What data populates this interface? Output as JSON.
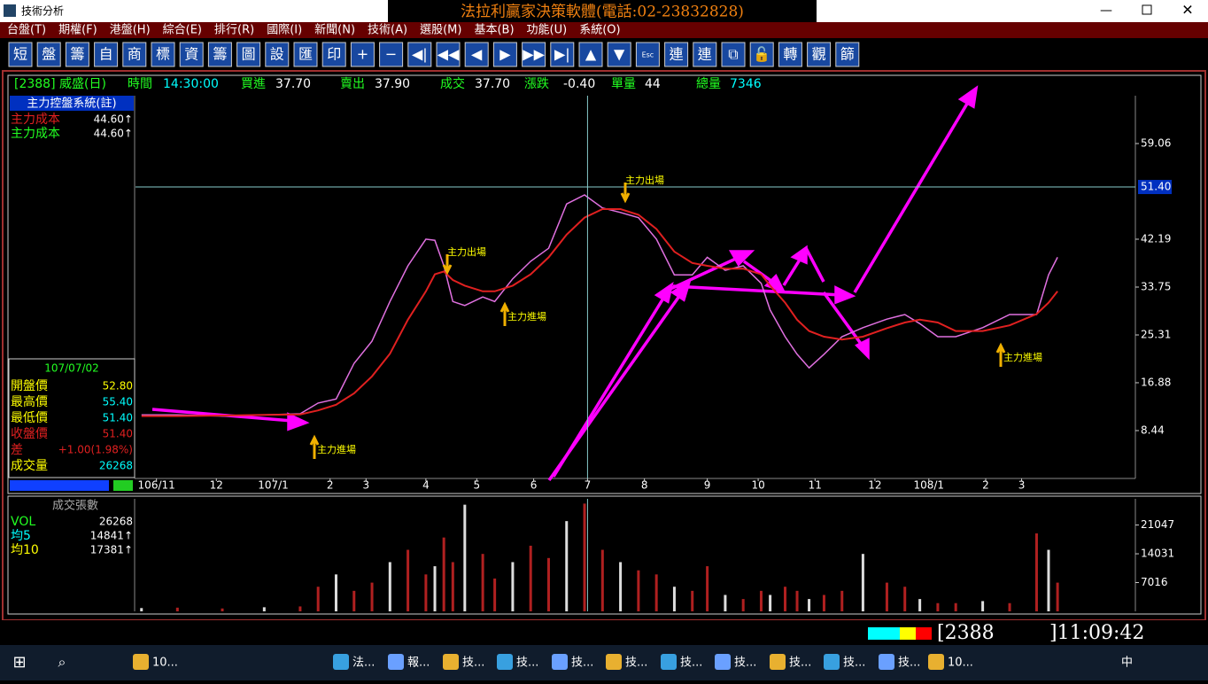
{
  "window": {
    "title": "技術分析",
    "banner": "法拉利贏家決策軟體(電話:02-23832828)"
  },
  "menu": [
    "台盤(T)",
    "期權(F)",
    "港盤(H)",
    "綜合(E)",
    "排行(R)",
    "國際(I)",
    "新聞(N)",
    "技術(A)",
    "選股(M)",
    "基本(B)",
    "功能(U)",
    "系統(O)"
  ],
  "toolbar": [
    "短",
    "盤",
    "籌",
    "自",
    "商",
    "標",
    "資",
    "籌",
    "圖",
    "設",
    "匯",
    "印",
    "+",
    "−",
    "◀|",
    "◀◀",
    "◀",
    "▶",
    "▶▶",
    "▶|",
    "▲",
    "▼",
    "Esc",
    "連",
    "連",
    "⧉",
    "🔓",
    "轉",
    "觀",
    "篩"
  ],
  "info": [
    "[2388] 威盛(日)",
    "時間",
    "14:30:00",
    "買進",
    "37.70",
    "賣出",
    "37.90",
    "成交",
    "37.70",
    "漲跌",
    "-0.40",
    "單量",
    "44",
    "總量",
    "7346"
  ],
  "panel": {
    "title": "主力控盤系統(註)",
    "rows": [
      [
        "主力成本",
        "44.60↑"
      ],
      [
        "主力成本",
        "44.60↑"
      ]
    ]
  },
  "quote": {
    "date": "107/07/02",
    "rows": [
      [
        "開盤價",
        "52.80"
      ],
      [
        "最高價",
        "55.40"
      ],
      [
        "最低價",
        "51.40"
      ],
      [
        "收盤價",
        "51.40"
      ],
      [
        "差",
        "+1.00(1.98%)"
      ],
      [
        "成交量",
        "26268"
      ]
    ]
  },
  "vol_panel": {
    "title": "成交張數",
    "rows": [
      [
        "VOL",
        "26268"
      ],
      [
        "均5",
        "14841↑"
      ],
      [
        "均10",
        "17381↑"
      ]
    ]
  },
  "annotations": [
    "主力進場",
    "主力出場",
    "主力進場",
    "主力出場",
    "主力進場"
  ],
  "chart_data": [
    {
      "type": "line",
      "x": [
        2,
        14,
        29,
        43,
        55,
        61,
        67,
        73,
        79,
        85,
        91,
        97,
        100,
        103,
        106,
        110,
        116,
        120,
        126,
        132,
        138,
        144,
        150,
        156,
        162,
        168,
        174,
        180,
        186,
        191,
        197,
        203,
        209,
        212,
        217,
        221,
        225,
        230,
        236,
        243,
        251,
        257,
        262,
        268,
        274,
        283,
        292,
        301,
        305,
        308
      ],
      "series": [
        {
          "name": "收盤價",
          "color": "#e070e0",
          "values": [
            11.2,
            11.2,
            11,
            11.2,
            11.4,
            13.3,
            14,
            20.3,
            24.2,
            31.2,
            37.5,
            42.2,
            42,
            37.5,
            31.2,
            30.5,
            32,
            31.2,
            35.2,
            38.3,
            40.6,
            48.4,
            50,
            47.7,
            46.9,
            46,
            42.2,
            35.9,
            35.9,
            39,
            36.7,
            37.5,
            34.4,
            29.7,
            25,
            21.9,
            19.5,
            21.9,
            25,
            26.6,
            28.1,
            28.9,
            27.3,
            25,
            25,
            26.6,
            28.9,
            28.9,
            35.9,
            39
          ]
        },
        {
          "name": "主力成本",
          "color": "#e02020",
          "values": [
            11,
            11,
            11.1,
            11.2,
            11.3,
            12,
            13,
            15,
            18,
            22,
            28,
            33,
            36,
            36.5,
            35,
            34,
            33,
            33,
            34,
            36,
            39,
            43,
            46,
            47.5,
            47.5,
            46.5,
            44,
            40,
            38,
            37.5,
            37,
            37,
            36,
            34,
            31,
            28,
            26,
            25,
            24.5,
            25,
            26.5,
            27.5,
            28,
            27.5,
            26,
            26,
            27,
            29,
            31,
            33
          ]
        }
      ],
      "xlim": [
        0,
        334
      ],
      "xticks": [
        {
          "value": 7,
          "label": "106/11"
        },
        {
          "value": 27,
          "label": "12"
        },
        {
          "value": 46,
          "label": "107/1"
        },
        {
          "value": 65,
          "label": "2"
        },
        {
          "value": 77,
          "label": "3"
        },
        {
          "value": 97,
          "label": "4"
        },
        {
          "value": 114,
          "label": "5"
        },
        {
          "value": 133,
          "label": "6"
        },
        {
          "value": 151,
          "label": "7"
        },
        {
          "value": 170,
          "label": "8"
        },
        {
          "value": 191,
          "label": "9"
        },
        {
          "value": 208,
          "label": "10"
        },
        {
          "value": 227,
          "label": "11"
        },
        {
          "value": 247,
          "label": "12"
        },
        {
          "value": 265,
          "label": "108/1"
        },
        {
          "value": 284,
          "label": "2"
        },
        {
          "value": 296,
          "label": "3"
        }
      ],
      "ylim": [
        0,
        67.5
      ],
      "yticks": [
        8.44,
        16.88,
        25.31,
        33.75,
        42.19,
        59.06
      ],
      "crosshair": {
        "x": 151,
        "y": {
          "value": 51.4,
          "label": "51.40"
        }
      }
    },
    {
      "type": "bar",
      "x": [
        2,
        14,
        29,
        43,
        55,
        61,
        67,
        73,
        79,
        85,
        91,
        97,
        100,
        103,
        106,
        110,
        116,
        120,
        126,
        132,
        138,
        144,
        150,
        156,
        162,
        168,
        174,
        180,
        186,
        191,
        197,
        203,
        209,
        212,
        217,
        221,
        225,
        230,
        236,
        243,
        251,
        257,
        262,
        268,
        274,
        283,
        292,
        301,
        305,
        308
      ],
      "values": [
        800,
        900,
        700,
        1000,
        1200,
        6000,
        9000,
        5000,
        7000,
        12000,
        15000,
        9000,
        11000,
        18000,
        12000,
        26000,
        14000,
        8000,
        12000,
        16000,
        13000,
        22000,
        26268,
        15000,
        12000,
        10000,
        9000,
        6000,
        5000,
        11000,
        4000,
        3000,
        5000,
        4000,
        6000,
        5000,
        3000,
        4000,
        5000,
        14000,
        7000,
        6000,
        3000,
        2000,
        2000,
        2500,
        2000,
        19000,
        15000,
        7000
      ],
      "color": "#b02020",
      "xlim": [
        0,
        334
      ],
      "ylim": [
        0,
        27000
      ],
      "yticks": [
        7016,
        14031,
        21047
      ]
    }
  ],
  "status": {
    "code": "[2388",
    "time": "]11:09:42"
  },
  "taskbar": [
    "10...",
    "法...",
    "報...",
    "技...",
    "技...",
    "技...",
    "技...",
    "技...",
    "技...",
    "技...",
    "技...",
    "技...",
    "10...",
    "中"
  ]
}
